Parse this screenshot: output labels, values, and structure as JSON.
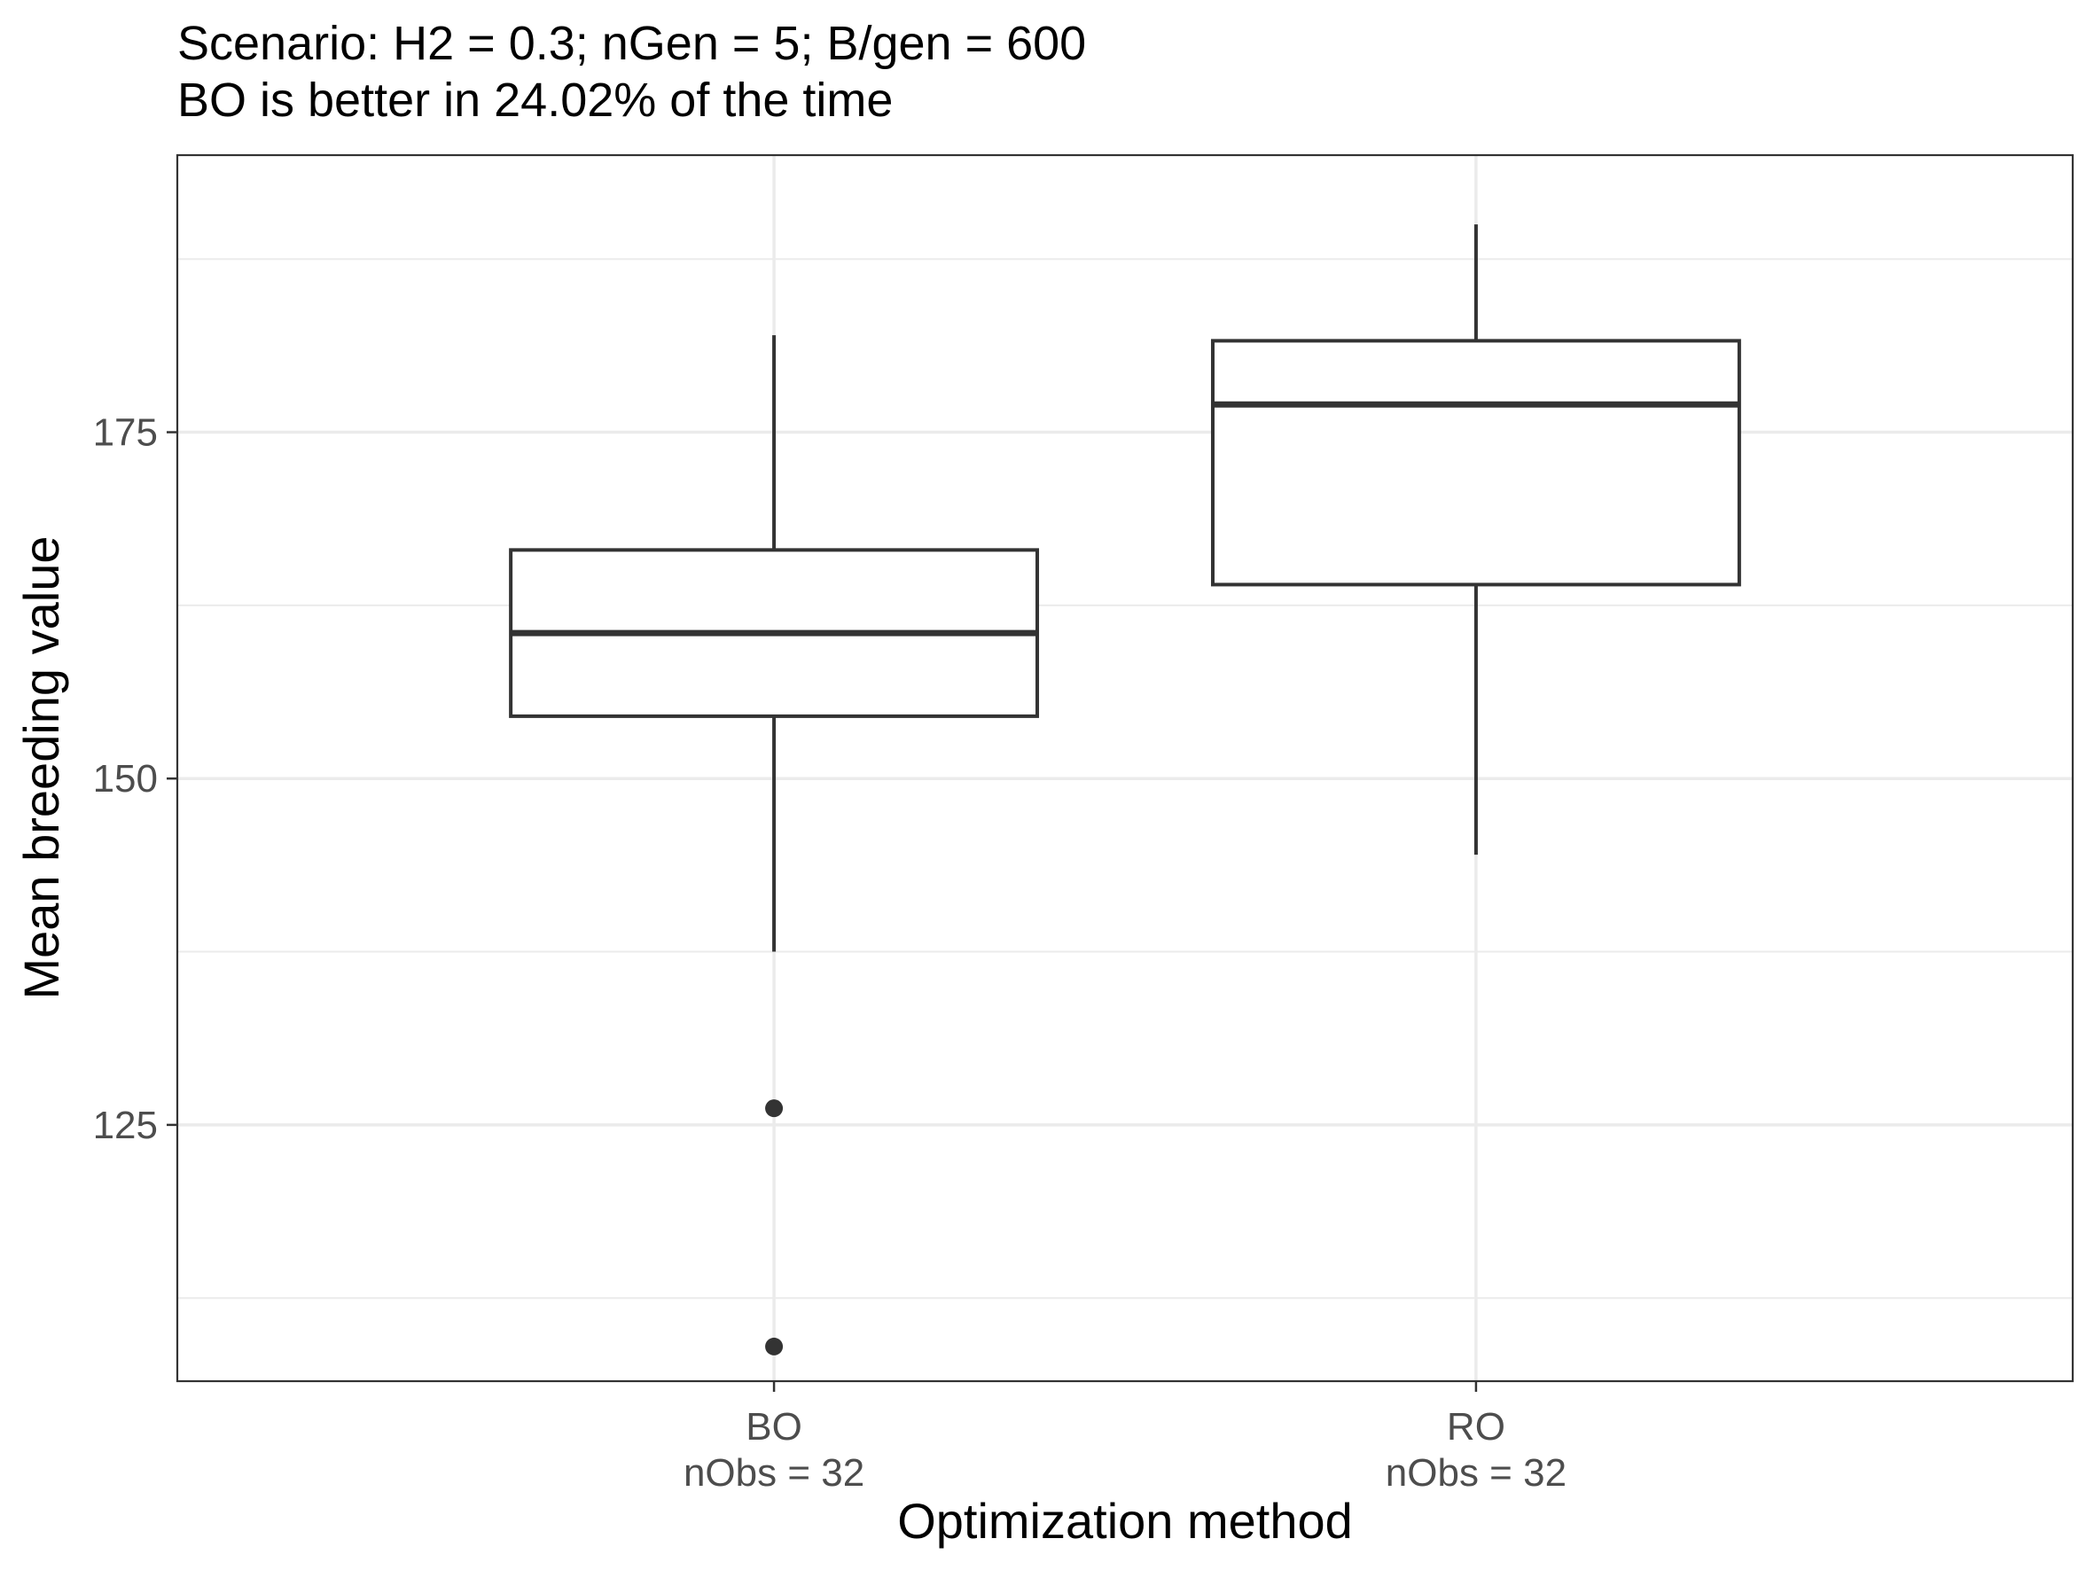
{
  "chart_data": {
    "type": "boxplot",
    "title": "Scenario: H2 = 0.3; nGen = 5; B/gen = 600",
    "subtitle": "BO is better in 24.02% of the time",
    "xlabel": "Optimization method",
    "ylabel": "Mean breeding value",
    "ylim": [
      106.5,
      195
    ],
    "yticks": [
      125,
      150,
      175
    ],
    "y_minor_gridlines": [
      112.5,
      137.5,
      162.5,
      187.5
    ],
    "grid": true,
    "categories": [
      {
        "label": "BO",
        "sublabel": "nObs = 32",
        "whisker_low": 137.5,
        "q1": 154.5,
        "median": 160.5,
        "q3": 166.5,
        "whisker_high": 182,
        "outliers": [
          126.2,
          109
        ]
      },
      {
        "label": "RO",
        "sublabel": "nObs = 32",
        "whisker_low": 144.5,
        "q1": 164,
        "median": 177,
        "q3": 181.6,
        "whisker_high": 190
      }
    ],
    "colors": {
      "box_stroke": "#333333",
      "grid": "#ebebeb",
      "panel_border": "#333333",
      "tick_label": "#4d4d4d"
    }
  }
}
